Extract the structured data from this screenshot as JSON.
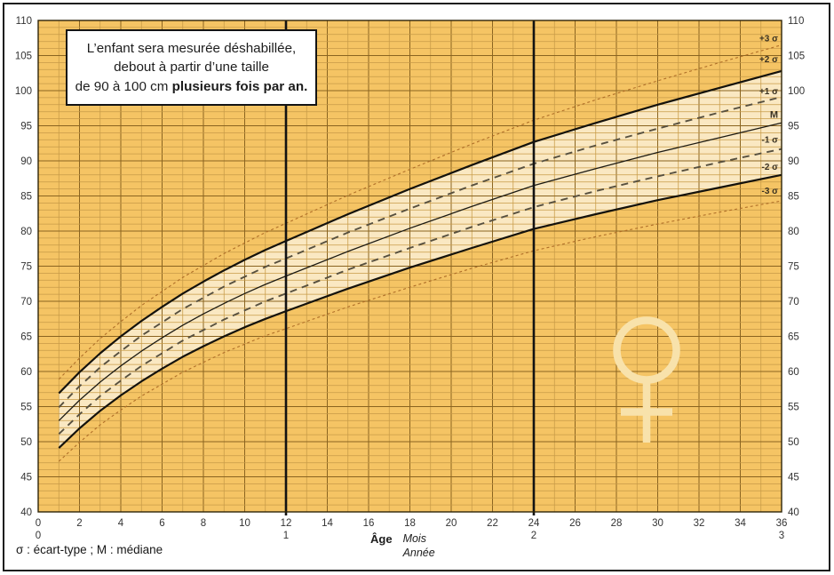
{
  "note_box": {
    "line1": "L’enfant sera mesurée déshabillée,",
    "line2": "debout à partir d’une taille",
    "line3_normal": "de 90 à 100 cm ",
    "line3_bold": "plusieurs fois par an."
  },
  "axis_labels": {
    "age": "Âge",
    "months_unit": "Mois",
    "years_unit": "Année"
  },
  "footer_legend": "σ : écart-type ; M : médiane",
  "watermark_icon": "female-symbol",
  "colors": {
    "plot_bg": "#F5C464",
    "band": "#FAE8C2",
    "grid_minor": "#C89A47",
    "grid_major": "#8A6420",
    "plot_border": "#2E2408",
    "ref_line": "#121212",
    "curve_2sigma": "#14120C",
    "curve_median": "#1C1A12",
    "curve_1sigma": "#57503F",
    "curve_3sigma": "#B06F28",
    "tick_text": "#333333",
    "sigma_label": "#3A3222",
    "watermark": "#F8E2AB"
  },
  "chart_data": {
    "type": "line",
    "xlabel": "Âge (Mois / Année)",
    "ylabel": "Taille (cm)",
    "xlim": [
      0,
      36
    ],
    "ylim": [
      40,
      110
    ],
    "grid": true,
    "x_ticks_months": [
      0,
      2,
      4,
      6,
      8,
      10,
      12,
      14,
      16,
      18,
      20,
      22,
      24,
      26,
      28,
      30,
      32,
      34,
      36
    ],
    "x_ticks_years": [
      {
        "month": 0,
        "label": "0"
      },
      {
        "month": 12,
        "label": "1"
      },
      {
        "month": 24,
        "label": "2"
      },
      {
        "month": 36,
        "label": "3"
      }
    ],
    "y_ticks": [
      40,
      45,
      50,
      55,
      60,
      65,
      70,
      75,
      80,
      85,
      90,
      95,
      100,
      105,
      110
    ],
    "reference_lines_months": [
      12,
      24
    ],
    "band_between": [
      "-2 σ",
      "+2 σ"
    ],
    "months": [
      1,
      2,
      3,
      4,
      5,
      6,
      7,
      8,
      9,
      10,
      11,
      12,
      15,
      18,
      21,
      24,
      27,
      30,
      33,
      36
    ],
    "series": [
      {
        "name": "+3 σ",
        "slug": "plus-3-sigma",
        "style": "dotted",
        "label_cm": 107.4,
        "values": [
          58.9,
          61.9,
          64.7,
          67.1,
          69.4,
          71.4,
          73.4,
          75.1,
          76.8,
          78.3,
          79.8,
          81.1,
          85.1,
          88.8,
          92.4,
          95.8,
          98.7,
          101.4,
          104.0,
          106.5
        ]
      },
      {
        "name": "+2 σ",
        "slug": "plus-2-sigma",
        "style": "solid-bold",
        "label_cm": 104.4,
        "values": [
          56.9,
          59.9,
          62.6,
          65.0,
          67.2,
          69.2,
          71.1,
          72.8,
          74.4,
          75.9,
          77.3,
          78.6,
          82.4,
          86.0,
          89.4,
          92.7,
          95.4,
          98.0,
          100.4,
          102.8
        ]
      },
      {
        "name": "+1 σ",
        "slug": "plus-1-sigma",
        "style": "dashed",
        "label_cm": 99.9,
        "values": [
          54.9,
          57.9,
          60.6,
          62.9,
          65.1,
          67.0,
          68.9,
          70.5,
          72.1,
          73.5,
          74.9,
          76.1,
          79.8,
          83.2,
          86.5,
          89.6,
          92.2,
          94.6,
          96.9,
          99.1
        ]
      },
      {
        "name": "M",
        "slug": "median",
        "style": "solid",
        "label_cm": 96.5,
        "values": [
          53.0,
          55.9,
          58.5,
          60.8,
          62.9,
          64.8,
          66.6,
          68.2,
          69.7,
          71.1,
          72.4,
          73.6,
          77.1,
          80.4,
          83.5,
          86.5,
          88.9,
          91.2,
          93.3,
          95.4
        ]
      },
      {
        "name": "-1 σ",
        "slug": "minus-1-sigma",
        "style": "dashed",
        "label_cm": 93.0,
        "values": [
          51.1,
          53.9,
          56.5,
          58.7,
          60.8,
          62.6,
          64.4,
          65.9,
          67.4,
          68.7,
          70.0,
          71.1,
          74.5,
          77.6,
          80.6,
          83.4,
          85.7,
          87.8,
          89.8,
          91.7
        ]
      },
      {
        "name": "-2 σ",
        "slug": "minus-2-sigma",
        "style": "solid-bold",
        "label_cm": 89.1,
        "values": [
          49.1,
          51.9,
          54.4,
          56.6,
          58.6,
          60.4,
          62.1,
          63.6,
          65.0,
          66.3,
          67.5,
          68.6,
          71.8,
          74.8,
          77.6,
          80.3,
          82.4,
          84.4,
          86.2,
          88.0
        ]
      },
      {
        "name": "-3 σ",
        "slug": "minus-3-sigma",
        "style": "dotted",
        "label_cm": 85.7,
        "values": [
          47.2,
          49.9,
          52.4,
          54.5,
          56.5,
          58.2,
          59.9,
          61.3,
          62.7,
          63.9,
          65.1,
          66.1,
          69.2,
          72.0,
          74.7,
          77.2,
          79.2,
          81.0,
          82.7,
          84.3
        ]
      }
    ]
  }
}
